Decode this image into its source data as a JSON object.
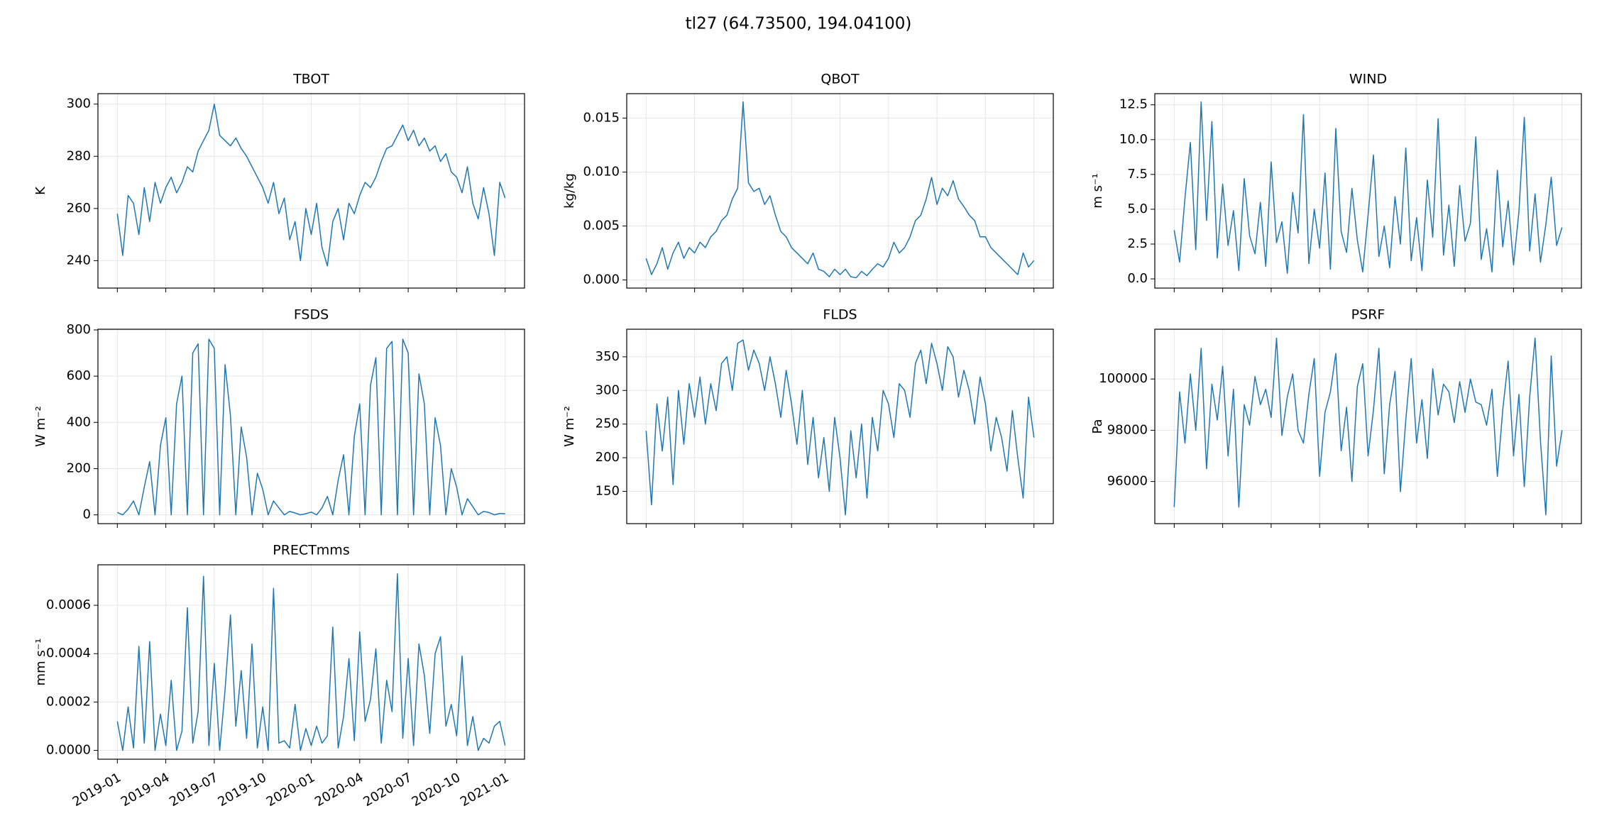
{
  "title": "tl27  (64.73500, 194.04100)",
  "chart_data": [
    {
      "type": "line",
      "title": "TBOT",
      "y_label": "K",
      "color": "#1f77b4",
      "grid": true,
      "ylim": [
        229.5,
        304
      ],
      "yticks": [
        240,
        260,
        280,
        300
      ],
      "values": [
        258,
        242,
        265,
        262,
        250,
        268,
        255,
        270,
        262,
        268,
        272,
        266,
        270,
        276,
        274,
        282,
        286,
        290,
        300,
        288,
        286,
        284,
        287,
        283,
        280,
        276,
        272,
        268,
        262,
        270,
        258,
        264,
        248,
        255,
        240,
        260,
        250,
        262,
        245,
        238,
        255,
        260,
        248,
        262,
        258,
        265,
        270,
        268,
        272,
        278,
        283,
        284,
        288,
        292,
        286,
        290,
        284,
        287,
        282,
        284,
        278,
        281,
        274,
        272,
        266,
        276,
        262,
        256,
        268,
        258,
        242,
        270,
        264
      ]
    },
    {
      "type": "line",
      "title": "QBOT",
      "y_label": "kg/kg",
      "color": "#1f77b4",
      "grid": true,
      "ylim": [
        -0.00075,
        0.01726
      ],
      "yticks": [
        {
          "value": 0,
          "label": "0.000"
        },
        {
          "value": 0.005,
          "label": "0.005"
        },
        {
          "value": 0.01,
          "label": "0.010"
        },
        {
          "value": 0.015,
          "label": "0.015"
        }
      ],
      "values": [
        0.002,
        0.0005,
        0.0015,
        0.003,
        0.001,
        0.0025,
        0.0035,
        0.002,
        0.003,
        0.0025,
        0.0035,
        0.003,
        0.004,
        0.0045,
        0.0055,
        0.006,
        0.0075,
        0.0085,
        0.0165,
        0.009,
        0.0082,
        0.0085,
        0.007,
        0.0078,
        0.006,
        0.0045,
        0.004,
        0.003,
        0.0025,
        0.002,
        0.0015,
        0.0025,
        0.001,
        0.0008,
        0.0003,
        0.001,
        0.0005,
        0.001,
        0.0003,
        0.0002,
        0.0008,
        0.0004,
        0.001,
        0.0015,
        0.0012,
        0.002,
        0.0035,
        0.0025,
        0.003,
        0.004,
        0.0055,
        0.006,
        0.0075,
        0.0095,
        0.007,
        0.0085,
        0.0078,
        0.0092,
        0.0075,
        0.0068,
        0.006,
        0.0055,
        0.004,
        0.004,
        0.003,
        0.0025,
        0.002,
        0.0015,
        0.001,
        0.0005,
        0.0025,
        0.0012,
        0.0018
      ]
    },
    {
      "type": "line",
      "title": "WIND",
      "y_label": "m s⁻¹",
      "color": "#1f77b4",
      "grid": true,
      "ylim": [
        -0.66,
        13.3
      ],
      "yticks": [
        {
          "value": 0,
          "label": "0.0"
        },
        2.5,
        {
          "value": 5,
          "label": "5.0"
        },
        7.5,
        {
          "value": 10,
          "label": "10.0"
        },
        12.5
      ],
      "values": [
        3.5,
        1.2,
        5.8,
        9.8,
        2.1,
        12.7,
        4.2,
        11.3,
        1.5,
        6.8,
        2.4,
        4.9,
        0.6,
        7.2,
        3.1,
        1.8,
        5.5,
        0.9,
        8.4,
        2.6,
        4.1,
        0.4,
        6.2,
        3.3,
        11.8,
        1.1,
        5.0,
        2.2,
        7.6,
        0.7,
        10.8,
        3.4,
        1.9,
        6.5,
        2.8,
        0.5,
        4.6,
        8.9,
        1.6,
        3.8,
        0.8,
        5.9,
        2.5,
        9.4,
        1.3,
        4.4,
        0.6,
        7.1,
        3.0,
        11.5,
        1.7,
        5.3,
        0.9,
        6.7,
        2.7,
        4.0,
        10.2,
        1.4,
        3.6,
        0.5,
        7.8,
        2.3,
        5.6,
        1.0,
        4.8,
        11.6,
        2.0,
        6.1,
        1.2,
        3.9,
        7.3,
        2.4,
        3.7
      ]
    },
    {
      "type": "line",
      "title": "FSDS",
      "y_label": "W m⁻²",
      "color": "#1f77b4",
      "grid": true,
      "ylim": [
        -38,
        803
      ],
      "yticks": [
        0,
        200,
        400,
        600,
        800
      ],
      "values": [
        10,
        0,
        25,
        60,
        0,
        120,
        230,
        0,
        300,
        420,
        0,
        480,
        600,
        0,
        700,
        740,
        0,
        760,
        720,
        0,
        650,
        430,
        0,
        380,
        250,
        0,
        180,
        110,
        0,
        60,
        30,
        0,
        15,
        8,
        0,
        5,
        12,
        0,
        30,
        80,
        0,
        150,
        260,
        0,
        340,
        480,
        0,
        560,
        680,
        0,
        720,
        750,
        0,
        760,
        700,
        0,
        610,
        480,
        0,
        420,
        300,
        0,
        200,
        120,
        0,
        70,
        35,
        0,
        15,
        10,
        0,
        6,
        5
      ]
    },
    {
      "type": "line",
      "title": "FLDS",
      "y_label": "W m⁻²",
      "color": "#1f77b4",
      "grid": true,
      "ylim": [
        102,
        391
      ],
      "yticks": [
        150,
        200,
        250,
        300,
        350
      ],
      "values": [
        240,
        130,
        280,
        210,
        290,
        160,
        300,
        220,
        310,
        260,
        320,
        250,
        310,
        270,
        340,
        350,
        300,
        370,
        375,
        330,
        360,
        340,
        300,
        350,
        310,
        260,
        330,
        280,
        220,
        300,
        190,
        260,
        170,
        230,
        150,
        260,
        200,
        115,
        240,
        170,
        250,
        140,
        260,
        210,
        300,
        280,
        230,
        310,
        300,
        260,
        340,
        360,
        310,
        370,
        340,
        300,
        365,
        350,
        290,
        330,
        300,
        250,
        320,
        280,
        210,
        260,
        230,
        180,
        270,
        200,
        140,
        290,
        230
      ]
    },
    {
      "type": "line",
      "title": "PSRF",
      "y_label": "Pa",
      "color": "#1f77b4",
      "grid": true,
      "ylim": [
        94355,
        101945
      ],
      "yticks": [
        96000,
        98000,
        100000
      ],
      "values": [
        95000,
        99500,
        97500,
        100200,
        98000,
        101200,
        96500,
        99800,
        98400,
        100500,
        97000,
        99600,
        95000,
        99000,
        98200,
        100100,
        99000,
        99600,
        98500,
        101600,
        97800,
        99300,
        100200,
        98000,
        97500,
        99400,
        100800,
        96200,
        98700,
        99500,
        101000,
        97200,
        98900,
        96000,
        99700,
        100600,
        97000,
        98800,
        101200,
        96300,
        99000,
        100300,
        95600,
        98400,
        100800,
        97500,
        99200,
        96900,
        100400,
        98600,
        99800,
        99500,
        98300,
        99900,
        98700,
        100000,
        99100,
        99000,
        98200,
        99600,
        96200,
        98800,
        100700,
        97000,
        99400,
        95800,
        99300,
        101600,
        97600,
        94700,
        100900,
        96600,
        98000
      ]
    },
    {
      "type": "line",
      "title": "PRECTmms",
      "y_label": "mm s⁻¹",
      "color": "#1f77b4",
      "grid": true,
      "ylim": [
        -3.65e-05,
        0.0007675
      ],
      "yticks": [
        {
          "value": 0,
          "label": "0.0000"
        },
        {
          "value": 0.0002,
          "label": "0.0002"
        },
        {
          "value": 0.0004,
          "label": "0.0004"
        },
        {
          "value": 0.0006,
          "label": "0.0006"
        }
      ],
      "categories": [
        "2019-01",
        null,
        null,
        null,
        null,
        null,
        null,
        null,
        null,
        "2019-04",
        null,
        null,
        null,
        null,
        null,
        null,
        null,
        null,
        "2019-07",
        null,
        null,
        null,
        null,
        null,
        null,
        null,
        null,
        "2019-10",
        null,
        null,
        null,
        null,
        null,
        null,
        null,
        null,
        "2020-01",
        null,
        null,
        null,
        null,
        null,
        null,
        null,
        null,
        "2020-04",
        null,
        null,
        null,
        null,
        null,
        null,
        null,
        null,
        "2020-07",
        null,
        null,
        null,
        null,
        null,
        null,
        null,
        null,
        "2020-10",
        null,
        null,
        null,
        null,
        null,
        null,
        null,
        null,
        "2021-01"
      ],
      "values": [
        0.00012,
        0,
        0.00018,
        1e-05,
        0.00043,
        3e-05,
        0.00045,
        0,
        0.00015,
        2e-05,
        0.00029,
        0,
        8e-05,
        0.00059,
        3e-05,
        0.00016,
        0.00072,
        2e-05,
        0.00036,
        0,
        0.00025,
        0.00056,
        0.0001,
        0.00033,
        5e-05,
        0.00044,
        1e-05,
        0.00018,
        0,
        0.00067,
        3e-05,
        4e-05,
        1e-05,
        0.00019,
        0,
        9e-05,
        2e-05,
        0.0001,
        3e-05,
        6e-05,
        0.00051,
        1e-05,
        0.00014,
        0.00038,
        4e-05,
        0.00049,
        0.00012,
        0.00021,
        0.00042,
        3e-05,
        0.00029,
        0.00016,
        0.00073,
        5e-05,
        0.00038,
        2e-05,
        0.00044,
        0.00031,
        7e-05,
        0.0004,
        0.00047,
        0.0001,
        0.00019,
        6e-05,
        0.00039,
        2e-05,
        0.00014,
        0,
        5e-05,
        3e-05,
        0.0001,
        0.00012,
        2e-05
      ]
    }
  ]
}
